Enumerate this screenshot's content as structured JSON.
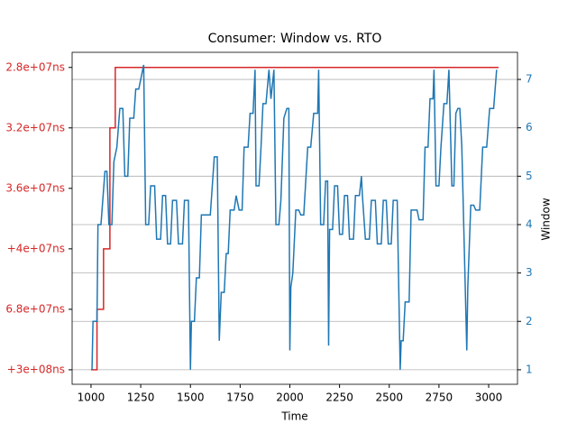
{
  "chart_data": {
    "type": "line",
    "title": "Consumer: Window vs. RTO",
    "xlabel": "Time",
    "y2label": "Window",
    "xlim": [
      905,
      3145
    ],
    "xticks": [
      1000,
      1250,
      1500,
      1750,
      2000,
      2250,
      2500,
      2750,
      3000
    ],
    "ylim": [
      -0.24,
      5.25
    ],
    "yticks": [
      {
        "value": 0,
        "label": "+3e+08ns"
      },
      {
        "value": 1,
        "label": "6.8e+07ns"
      },
      {
        "value": 2,
        "label": "+4e+07ns"
      },
      {
        "value": 3,
        "label": "3.6e+07ns"
      },
      {
        "value": 4,
        "label": "3.2e+07ns"
      },
      {
        "value": 5,
        "label": "2.8e+07ns"
      }
    ],
    "y_color": "#d62728",
    "y2lim": [
      0.7,
      7.56
    ],
    "y2ticks": [
      1,
      2,
      3,
      4,
      5,
      6,
      7
    ],
    "y2_color": "#1f77b4",
    "grid": true,
    "series": [
      {
        "name": "RTO",
        "color": "#d62728",
        "axis": "y",
        "x": [
          1000,
          1030,
          1030,
          1063,
          1063,
          1095,
          1095,
          1122,
          1122,
          3050
        ],
        "values": [
          0,
          0,
          1,
          1,
          2,
          2,
          4,
          4,
          5,
          5
        ]
      },
      {
        "name": "Window",
        "color": "#1f77b4",
        "axis": "y2",
        "x": [
          1005,
          1010,
          1030,
          1035,
          1050,
          1070,
          1080,
          1090,
          1105,
          1115,
          1130,
          1145,
          1160,
          1170,
          1185,
          1195,
          1215,
          1225,
          1240,
          1265,
          1275,
          1290,
          1300,
          1320,
          1330,
          1350,
          1360,
          1375,
          1385,
          1400,
          1410,
          1430,
          1440,
          1460,
          1470,
          1490,
          1500,
          1505,
          1520,
          1530,
          1545,
          1555,
          1570,
          1580,
          1590,
          1600,
          1620,
          1635,
          1645,
          1655,
          1670,
          1680,
          1690,
          1700,
          1720,
          1730,
          1745,
          1760,
          1770,
          1790,
          1800,
          1815,
          1825,
          1830,
          1845,
          1855,
          1865,
          1880,
          1895,
          1905,
          1920,
          1930,
          1945,
          1955,
          1970,
          1985,
          1995,
          2000,
          2005,
          2015,
          2030,
          2045,
          2055,
          2070,
          2090,
          2105,
          2120,
          2140,
          2145,
          2155,
          2170,
          2180,
          2190,
          2195,
          2200,
          2215,
          2225,
          2240,
          2250,
          2265,
          2275,
          2290,
          2300,
          2320,
          2330,
          2350,
          2360,
          2365,
          2380,
          2400,
          2410,
          2430,
          2440,
          2460,
          2470,
          2485,
          2495,
          2510,
          2520,
          2540,
          2555,
          2560,
          2570,
          2580,
          2600,
          2610,
          2630,
          2640,
          2650,
          2670,
          2680,
          2695,
          2705,
          2720,
          2725,
          2735,
          2750,
          2760,
          2775,
          2790,
          2800,
          2815,
          2825,
          2835,
          2845,
          2855,
          2865,
          2890,
          2895,
          2910,
          2925,
          2935,
          2955,
          2970,
          2990,
          3005,
          3025,
          3040
        ],
        "values": [
          1,
          2,
          2,
          4,
          4,
          5.1,
          5.1,
          4,
          4,
          5.3,
          5.6,
          6.4,
          6.4,
          5,
          5,
          6.2,
          6.2,
          6.8,
          6.8,
          7.3,
          4,
          4,
          4.8,
          4.8,
          3.7,
          3.7,
          4.6,
          4.6,
          3.6,
          3.6,
          4.5,
          4.5,
          3.6,
          3.6,
          4.5,
          4.5,
          1,
          2,
          2,
          2.9,
          2.9,
          4.2,
          4.2,
          4.2,
          4.2,
          4.2,
          5.4,
          5.4,
          1.6,
          2.6,
          2.6,
          3.4,
          3.4,
          4.3,
          4.3,
          4.6,
          4.3,
          4.3,
          5.6,
          5.6,
          6.3,
          6.3,
          7.2,
          4.8,
          4.8,
          5.6,
          6.5,
          6.5,
          7.2,
          6.6,
          7.2,
          4,
          4,
          4.5,
          6.2,
          6.4,
          6.4,
          1.4,
          2.7,
          3,
          4.3,
          4.3,
          4.2,
          4.2,
          5.6,
          5.6,
          6.3,
          6.3,
          7.2,
          4,
          4,
          4.9,
          4.9,
          1.5,
          3.9,
          3.9,
          4.8,
          4.8,
          3.8,
          3.8,
          4.6,
          4.6,
          3.7,
          3.7,
          4.6,
          4.6,
          5,
          4.6,
          3.7,
          3.7,
          4.5,
          4.5,
          3.6,
          3.6,
          4.5,
          4.5,
          3.6,
          3.6,
          4.5,
          4.5,
          1,
          1.6,
          1.6,
          2.4,
          2.4,
          4.3,
          4.3,
          4.3,
          4.1,
          4.1,
          5.6,
          5.6,
          6.6,
          6.6,
          7.2,
          4.8,
          4.8,
          5.6,
          6.5,
          6.5,
          7.2,
          4.8,
          4.8,
          6.3,
          6.4,
          6.4,
          5.6,
          1.4,
          2.7,
          4.4,
          4.4,
          4.3,
          4.3,
          5.6,
          5.6,
          6.4,
          6.4,
          7.2
        ]
      }
    ]
  }
}
